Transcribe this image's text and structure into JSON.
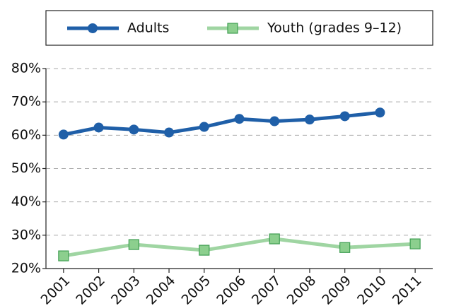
{
  "chart_data": {
    "type": "line",
    "xlim": [
      2000.5,
      2011.5
    ],
    "xticks": [
      2001,
      2002,
      2003,
      2004,
      2005,
      2006,
      2007,
      2008,
      2009,
      2010,
      2011
    ],
    "ylim": [
      20,
      80
    ],
    "yticks": [
      {
        "value": 20,
        "label": "20%"
      },
      {
        "value": 30,
        "label": "30%"
      },
      {
        "value": 40,
        "label": "40%"
      },
      {
        "value": 50,
        "label": "50%"
      },
      {
        "value": 60,
        "label": "60%"
      },
      {
        "value": 70,
        "label": "70%"
      },
      {
        "value": 80,
        "label": "80%"
      }
    ],
    "grid": true,
    "legend": "top",
    "series": [
      {
        "name": "Adults",
        "color": "#1f5fa8",
        "marker": "circle",
        "x": [
          2001,
          2002,
          2003,
          2004,
          2005,
          2006,
          2007,
          2008,
          2009,
          2010
        ],
        "values": [
          60.2,
          62.3,
          61.7,
          60.8,
          62.5,
          64.9,
          64.2,
          64.7,
          65.7,
          66.8
        ]
      },
      {
        "name": "Youth (grades 9–12)",
        "color": "#9fd5a2",
        "marker": "square",
        "x": [
          2001,
          2003,
          2005,
          2007,
          2009,
          2011
        ],
        "values": [
          23.8,
          27.2,
          25.5,
          28.9,
          26.3,
          27.4
        ]
      }
    ]
  }
}
